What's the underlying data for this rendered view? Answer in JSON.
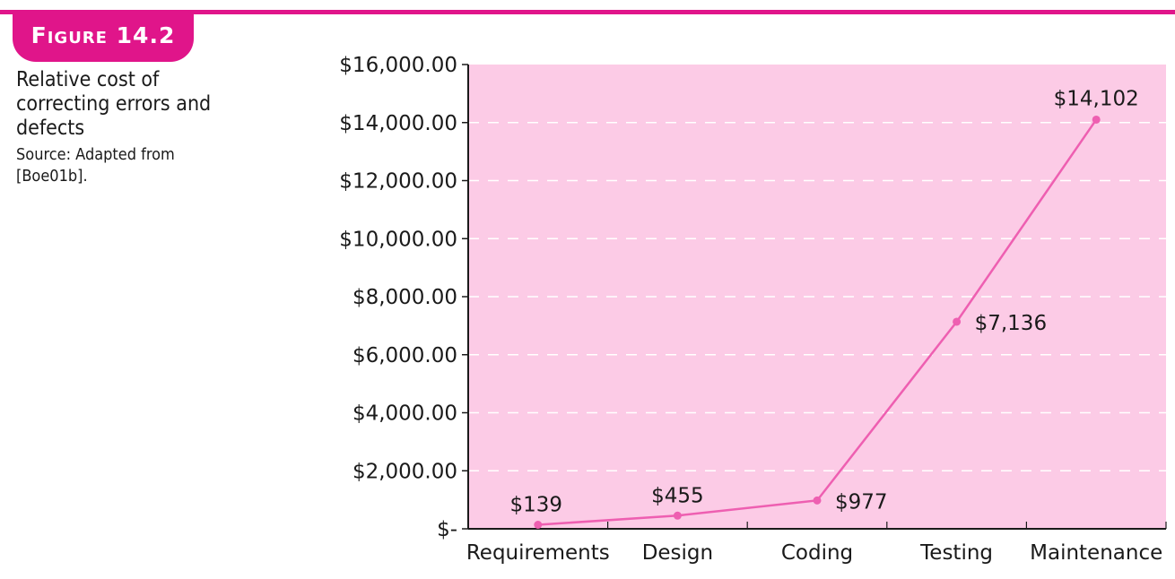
{
  "figure": {
    "tag": "Figure 14.2",
    "caption": "Relative cost of correcting errors and defects",
    "source": "Source: Adapted from [Boe01b]."
  },
  "colors": {
    "accent": "#e0158a",
    "plot_bg": "#fccbe6",
    "line": "#ee5fb1",
    "grid": "#ffffff",
    "axis": "#1a1a1a"
  },
  "chart_data": {
    "type": "line",
    "title": "",
    "xlabel": "",
    "ylabel": "",
    "categories": [
      "Requirements",
      "Design",
      "Coding",
      "Testing",
      "Maintenance"
    ],
    "series": [
      {
        "values": [
          139,
          455,
          977,
          7136,
          14102
        ]
      }
    ],
    "data_labels": [
      "$139",
      "$455",
      "$977",
      "$7,136",
      "$14,102"
    ],
    "ylim": [
      0,
      16000
    ],
    "yticks": [
      0,
      2000,
      4000,
      6000,
      8000,
      10000,
      12000,
      14000,
      16000
    ],
    "ytick_labels": [
      "$-",
      "$2,000.00",
      "$4,000.00",
      "$6,000.00",
      "$8,000.00",
      "$10,000.00",
      "$12,000.00",
      "$14,000.00",
      "$16,000.00"
    ],
    "grid": "dashed horizontal",
    "legend": "none"
  }
}
